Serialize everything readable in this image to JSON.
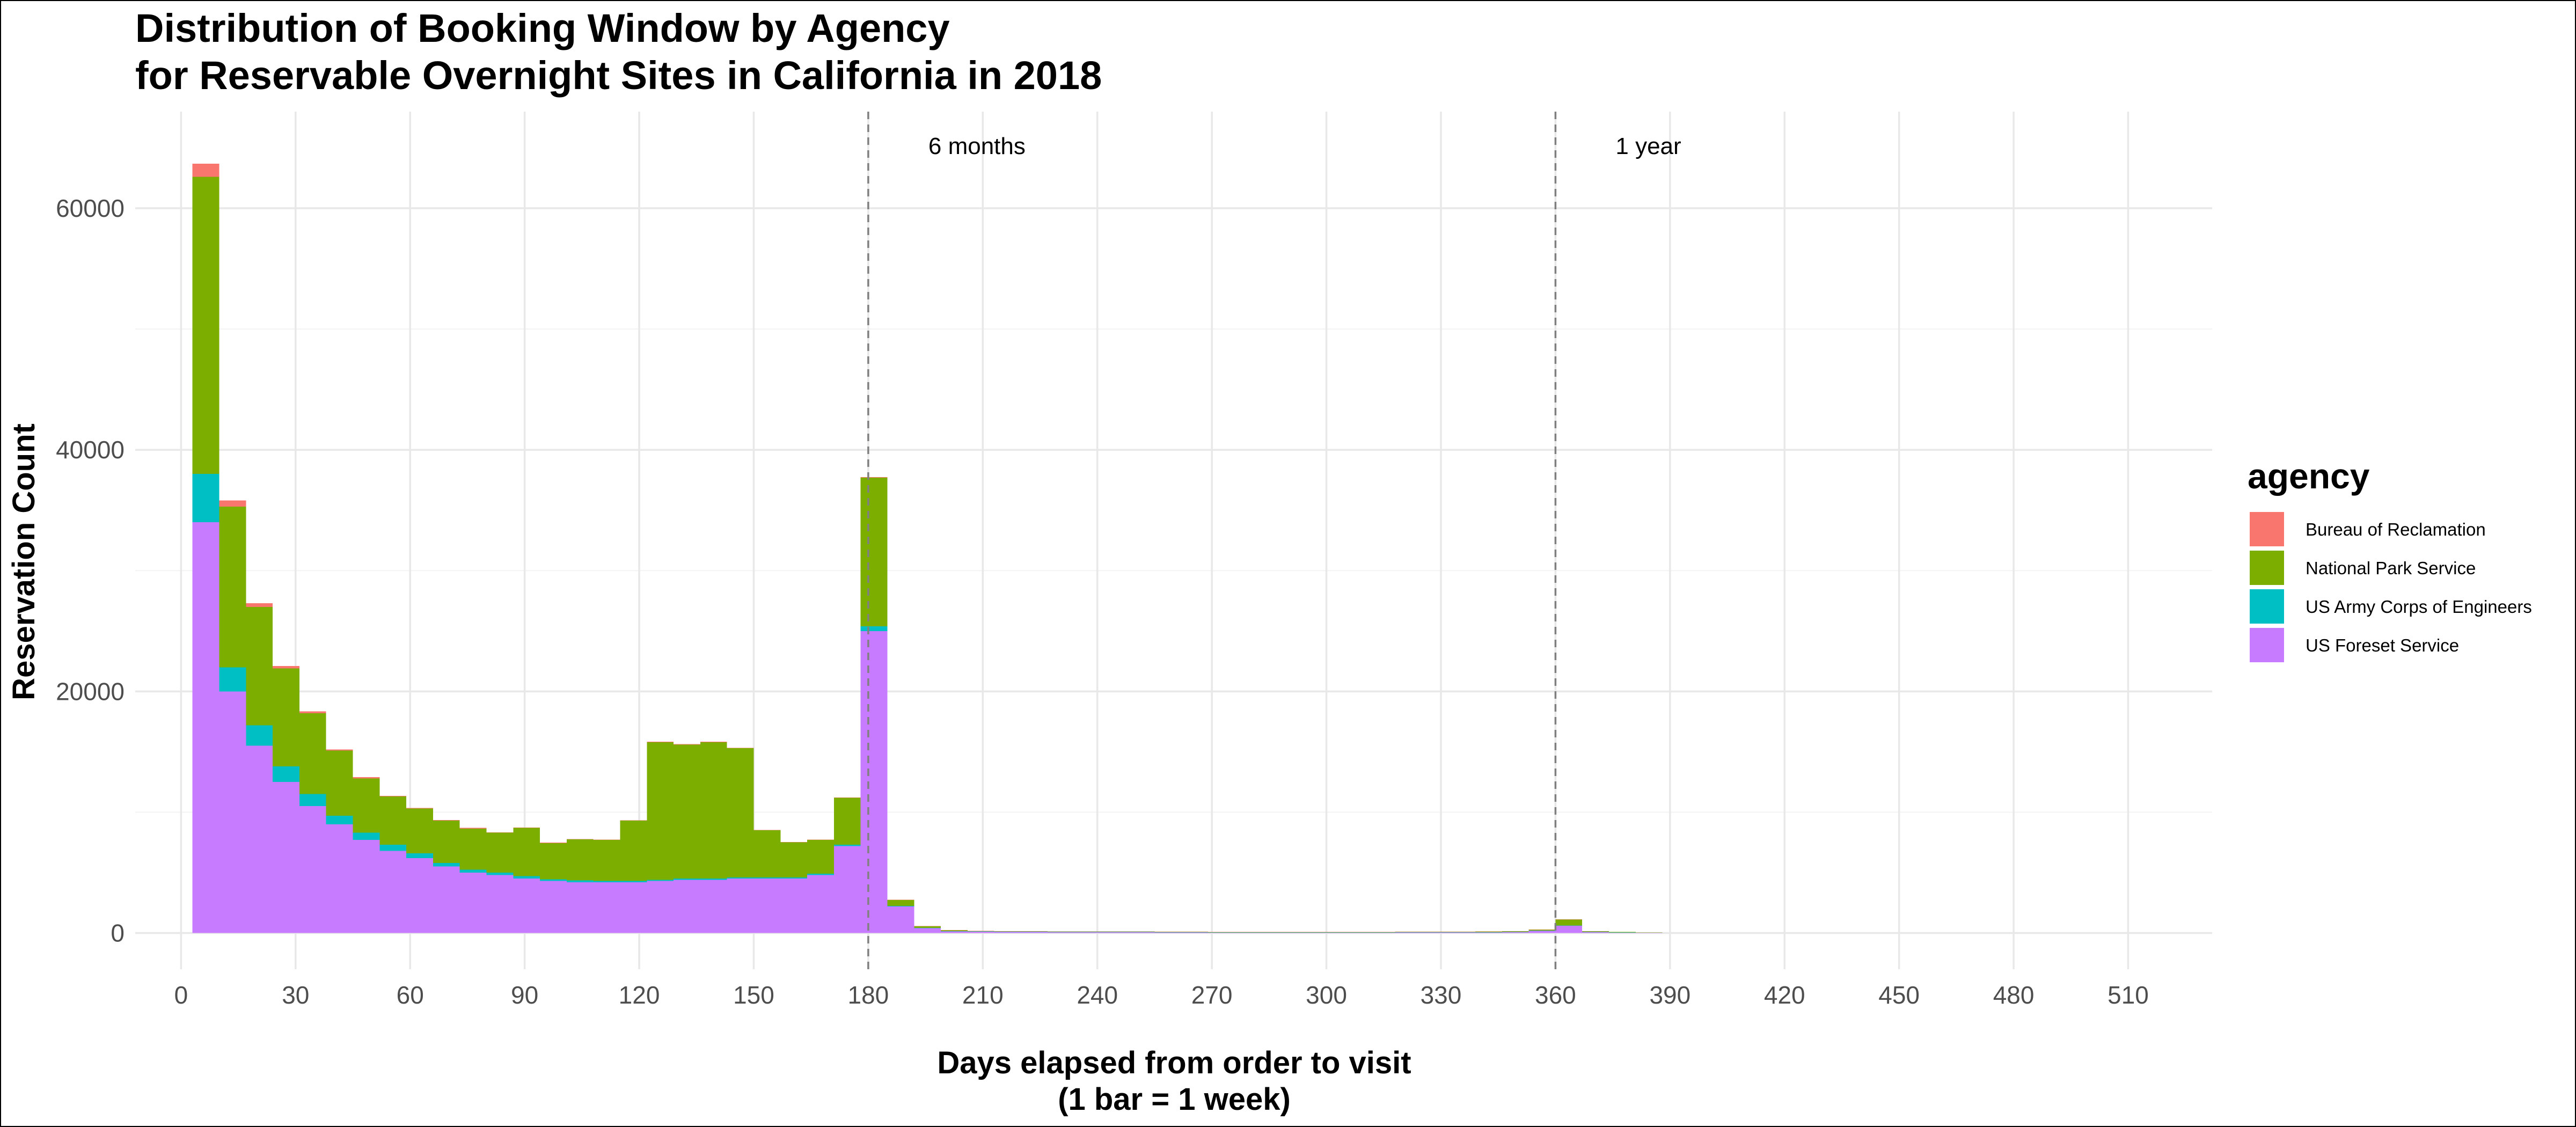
{
  "chart_data": {
    "type": "bar",
    "stacked": true,
    "title": [
      "Distribution of Booking Window by Agency",
      "for Reservable Overnight Sites in California in 2018"
    ],
    "xlabel": [
      "Days elapsed from order to visit",
      "(1 bar = 1 week)"
    ],
    "ylabel": "Reservation Count",
    "bin_width": 7,
    "xlim": [
      -12,
      532
    ],
    "ylim": [
      -3000,
      68000
    ],
    "x_ticks": [
      0,
      30,
      60,
      90,
      120,
      150,
      180,
      210,
      240,
      270,
      300,
      330,
      360,
      390,
      420,
      450,
      480,
      510
    ],
    "y_ticks": [
      0,
      20000,
      40000,
      60000
    ],
    "y_minor_ticks": [
      10000,
      30000,
      50000
    ],
    "grid": true,
    "legend": {
      "title": "agency",
      "position": "right"
    },
    "bins_start": [
      3,
      10,
      17,
      24,
      31,
      38,
      45,
      52,
      59,
      66,
      73,
      80,
      87,
      94,
      101,
      108,
      115,
      122,
      129,
      136,
      143,
      150,
      157,
      164,
      171,
      178,
      185,
      192,
      199,
      206,
      213,
      220,
      227,
      234,
      241,
      248,
      255,
      262,
      269,
      276,
      283,
      290,
      297,
      304,
      311,
      318,
      325,
      332,
      339,
      346,
      353,
      360,
      367,
      374,
      381
    ],
    "series": [
      {
        "name": "US Foreset Service",
        "color": "#C77CFF",
        "values": [
          34000,
          20000,
          15500,
          12500,
          10500,
          9000,
          7700,
          6800,
          6200,
          5500,
          5000,
          4800,
          4500,
          4300,
          4200,
          4200,
          4200,
          4300,
          4400,
          4400,
          4500,
          4500,
          4500,
          4800,
          7200,
          25000,
          2200,
          400,
          150,
          120,
          100,
          90,
          80,
          70,
          70,
          70,
          60,
          50,
          40,
          40,
          40,
          40,
          40,
          40,
          40,
          50,
          50,
          50,
          60,
          80,
          200,
          600,
          80,
          40,
          20
        ]
      },
      {
        "name": "US Army Corps of Engineers",
        "color": "#00BFC4",
        "values": [
          4000,
          2000,
          1700,
          1300,
          1000,
          700,
          600,
          500,
          400,
          300,
          250,
          200,
          200,
          150,
          150,
          100,
          100,
          100,
          100,
          100,
          100,
          100,
          100,
          100,
          100,
          400,
          50,
          20,
          10,
          10,
          10,
          10,
          10,
          10,
          10,
          10,
          10,
          5,
          5,
          5,
          5,
          5,
          5,
          5,
          5,
          5,
          5,
          5,
          5,
          5,
          10,
          20,
          5,
          5,
          0
        ]
      },
      {
        "name": "National Park Service",
        "color": "#7CAE00",
        "values": [
          24600,
          13300,
          9800,
          8100,
          6700,
          5400,
          4500,
          4000,
          3700,
          3500,
          3400,
          3300,
          4000,
          3000,
          3400,
          3400,
          5000,
          11400,
          11100,
          11300,
          10700,
          3900,
          2900,
          2800,
          3900,
          12300,
          500,
          150,
          80,
          50,
          50,
          40,
          40,
          40,
          40,
          40,
          40,
          40,
          30,
          30,
          30,
          30,
          30,
          40,
          40,
          40,
          40,
          50,
          60,
          60,
          80,
          500,
          60,
          40,
          20
        ]
      },
      {
        "name": "Bureau of Reclamation",
        "color": "#F8766D",
        "values": [
          1100,
          500,
          300,
          200,
          150,
          100,
          100,
          50,
          50,
          50,
          50,
          30,
          30,
          30,
          30,
          30,
          30,
          30,
          30,
          30,
          30,
          20,
          20,
          20,
          20,
          50,
          10,
          5,
          5,
          5,
          5,
          5,
          5,
          5,
          5,
          5,
          5,
          5,
          5,
          5,
          5,
          5,
          5,
          5,
          5,
          5,
          5,
          5,
          5,
          5,
          5,
          10,
          5,
          0,
          0
        ]
      }
    ],
    "annotations": [
      {
        "x": 180,
        "label": "6 months",
        "line": "dashed"
      },
      {
        "x": 360,
        "label": "1 year",
        "line": "dashed"
      }
    ]
  }
}
